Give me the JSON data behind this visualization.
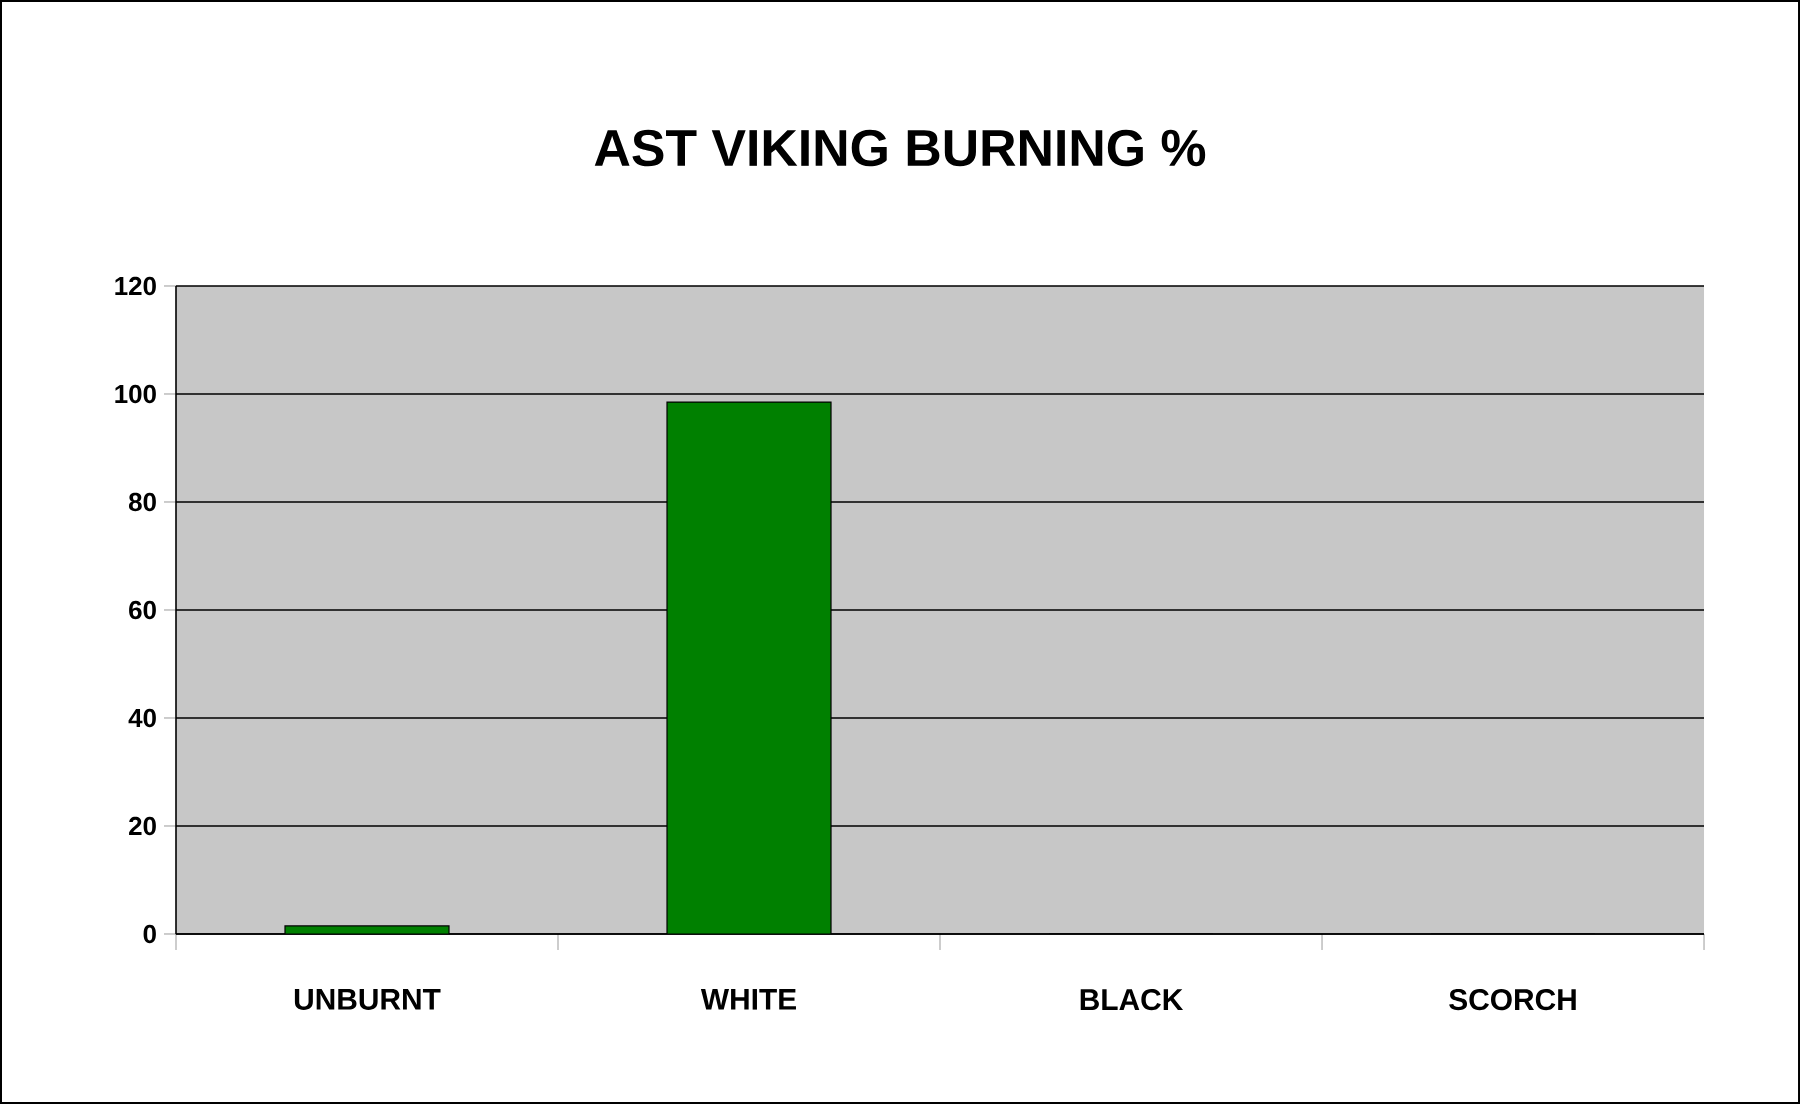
{
  "chart_data": {
    "type": "bar",
    "title": "AST VIKING BURNING %",
    "categories": [
      "UNBURNT",
      "WHITE",
      "BLACK",
      "SCORCH"
    ],
    "values": [
      1.5,
      98.5,
      0,
      0
    ],
    "color": "#008000",
    "ylim": [
      0,
      120
    ],
    "yticks": [
      0,
      20,
      40,
      60,
      80,
      100,
      120
    ],
    "grid": "y"
  }
}
